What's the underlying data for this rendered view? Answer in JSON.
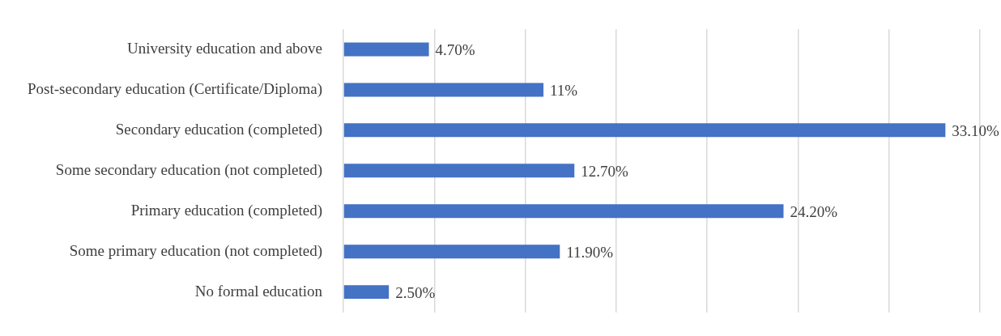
{
  "chart_data": {
    "type": "bar",
    "orientation": "horizontal",
    "categories": [
      "University education and above",
      "Post-secondary education (Certificate/Diploma)",
      "Secondary education (completed)",
      "Some secondary education (not completed)",
      "Primary education (completed)",
      "Some primary education (not completed)",
      "No formal education"
    ],
    "values": [
      4.7,
      11,
      33.1,
      12.7,
      24.2,
      11.9,
      2.5
    ],
    "value_labels": [
      "4.70%",
      "11%",
      "33.10%",
      "12.70%",
      "24.20%",
      "11.90%",
      "2.50%"
    ],
    "color": "#4472c4",
    "xlim": [
      0,
      35
    ],
    "xticks": [
      {
        "value": 0,
        "label": null
      },
      {
        "value": 5,
        "label": null
      },
      {
        "value": 10,
        "label": null
      },
      {
        "value": 15,
        "label": null
      },
      {
        "value": 20,
        "label": null
      },
      {
        "value": 25,
        "label": null
      },
      {
        "value": 30,
        "label": null
      },
      {
        "value": 35,
        "label": null
      }
    ],
    "tick_labels": "y",
    "grid": "x",
    "legend": false
  }
}
